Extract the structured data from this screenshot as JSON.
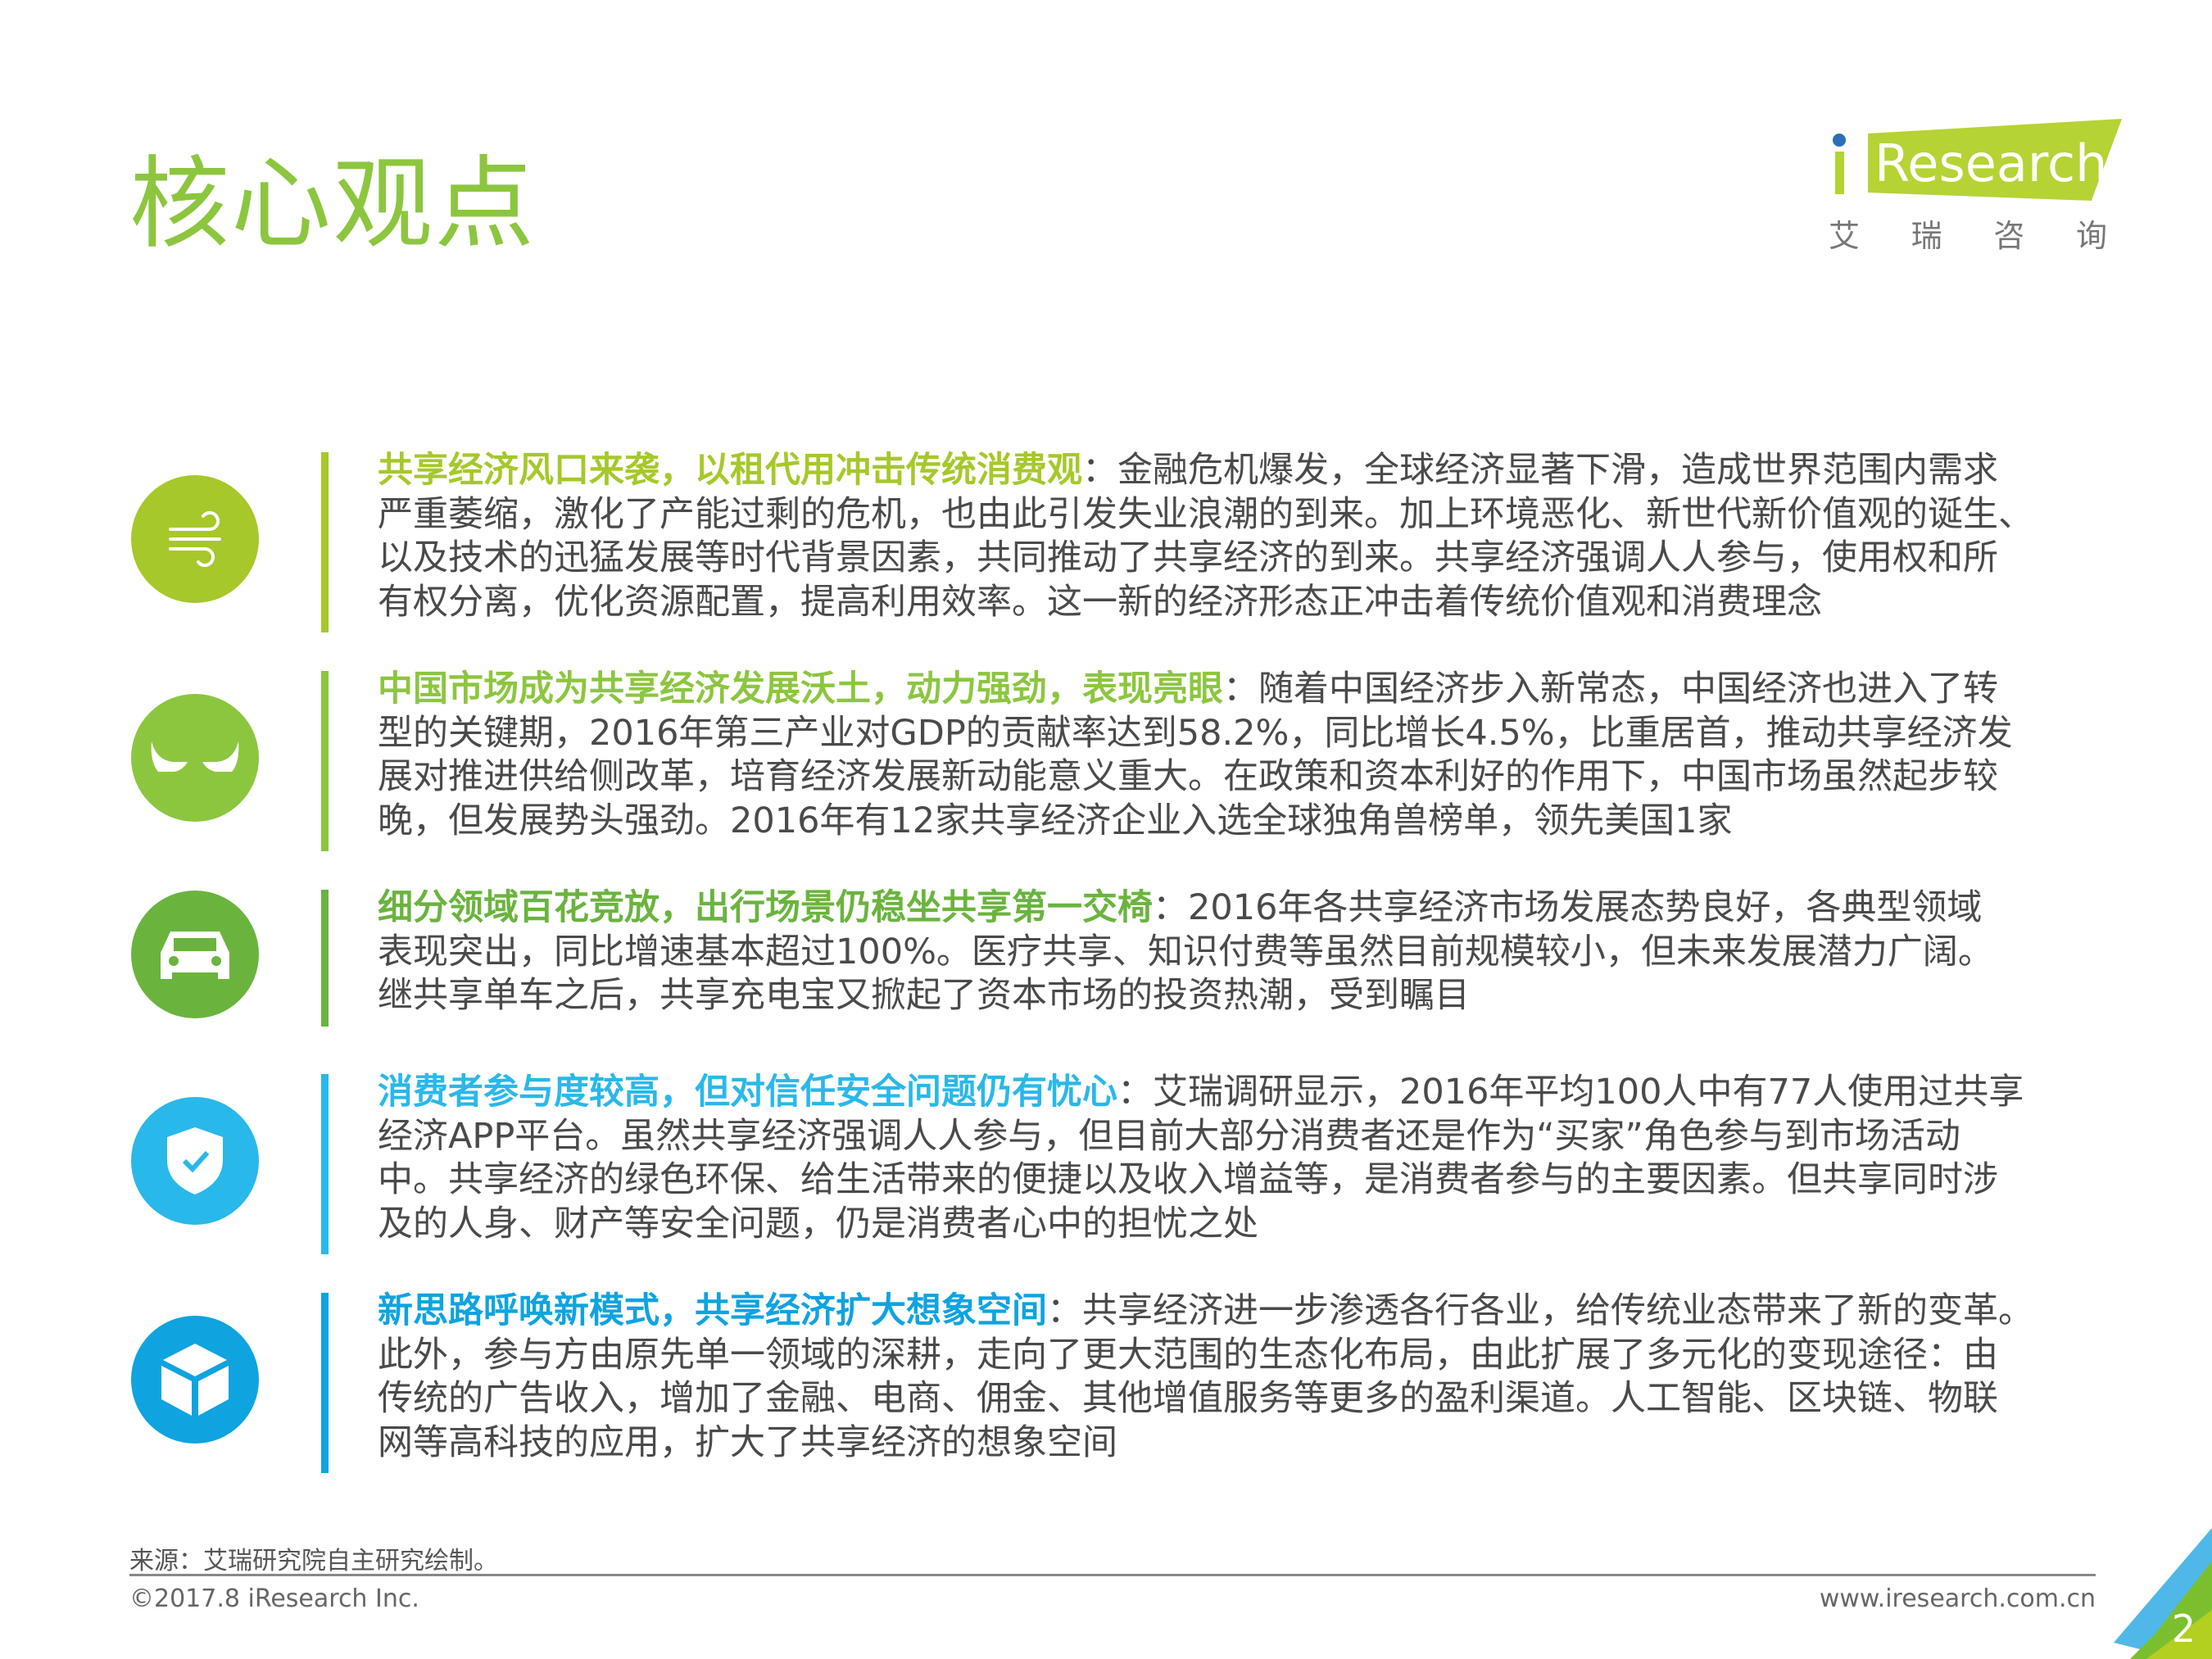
{
  "title": "核心观点",
  "logo": {
    "text": "iResearch",
    "cn": [
      "艾",
      "瑞",
      "咨",
      "询"
    ]
  },
  "points": [
    {
      "icon": "wind-icon",
      "color": "#a6c82a",
      "heading": "共享经济风口来袭，以租代用冲击传统消费观",
      "lines": [
        "：金融危机爆发，全球经济显著下滑，造成世界范围内需求",
        "严重萎缩，激化了产能过剩的危机，也由此引发失业浪潮的到来。加上环境恶化、新世代新价值观的诞生、",
        "以及技术的迅猛发展等时代背景因素，共同推动了共享经济的到来。共享经济强调人人参与，使用权和所",
        "有权分离，优化资源配置，提高利用效率。这一新的经济形态正冲击着传统价值观和消费理念"
      ]
    },
    {
      "icon": "bull-horns-icon",
      "color": "#8cc63f",
      "heading": "中国市场成为共享经济发展沃土，动力强劲，表现亮眼",
      "lines": [
        "：随着中国经济步入新常态，中国经济也进入了转",
        "型的关键期，2016年第三产业对GDP的贡献率达到58.2%，同比增长4.5%，比重居首，推动共享经济发",
        "展对推进供给侧改革，培育经济发展新动能意义重大。在政策和资本利好的作用下，中国市场虽然起步较",
        "晚，但发展势头强劲。2016年有12家共享经济企业入选全球独角兽榜单，领先美国1家"
      ]
    },
    {
      "icon": "car-icon",
      "color": "#6ab43e",
      "heading": "细分领域百花竞放，出行场景仍稳坐共享第一交椅",
      "lines": [
        "：2016年各共享经济市场发展态势良好，各典型领域",
        "表现突出，同比增速基本超过100%。医疗共享、知识付费等虽然目前规模较小，但未来发展潜力广阔。",
        "继共享单车之后，共享充电宝又掀起了资本市场的投资热潮，受到瞩目"
      ]
    },
    {
      "icon": "shield-check-icon",
      "color": "#29b8ea",
      "heading": "消费者参与度较高，但对信任安全问题仍有忧心",
      "lines": [
        "：艾瑞调研显示，2016年平均100人中有77人使用过共享",
        "经济APP平台。虽然共享经济强调人人参与，但目前大部分消费者还是作为“买家”角色参与到市场活动",
        "中。共享经济的绿色环保、给生活带来的便捷以及收入增益等，是消费者参与的主要因素。但共享同时涉",
        "及的人身、财产等安全问题，仍是消费者心中的担忧之处"
      ]
    },
    {
      "icon": "cube-icon",
      "color": "#0fa3e0",
      "heading": "新思路呼唤新模式，共享经济扩大想象空间",
      "lines": [
        "：共享经济进一步渗透各行各业，给传统业态带来了新的变革。",
        "此外，参与方由原先单一领域的深耕，走向了更大范围的生态化布局，由此扩展了多元化的变现途径：由",
        "传统的广告收入，增加了金融、电商、佣金、其他增值服务等更多的盈利渠道。人工智能、区块链、物联",
        "网等高科技的应用，扩大了共享经济的想象空间"
      ]
    }
  ],
  "footer": {
    "source": "来源：艾瑞研究院自主研究绘制。",
    "copyright": "©2017.8 iResearch Inc.",
    "url": "www.iresearch.com.cn",
    "page": "2"
  }
}
